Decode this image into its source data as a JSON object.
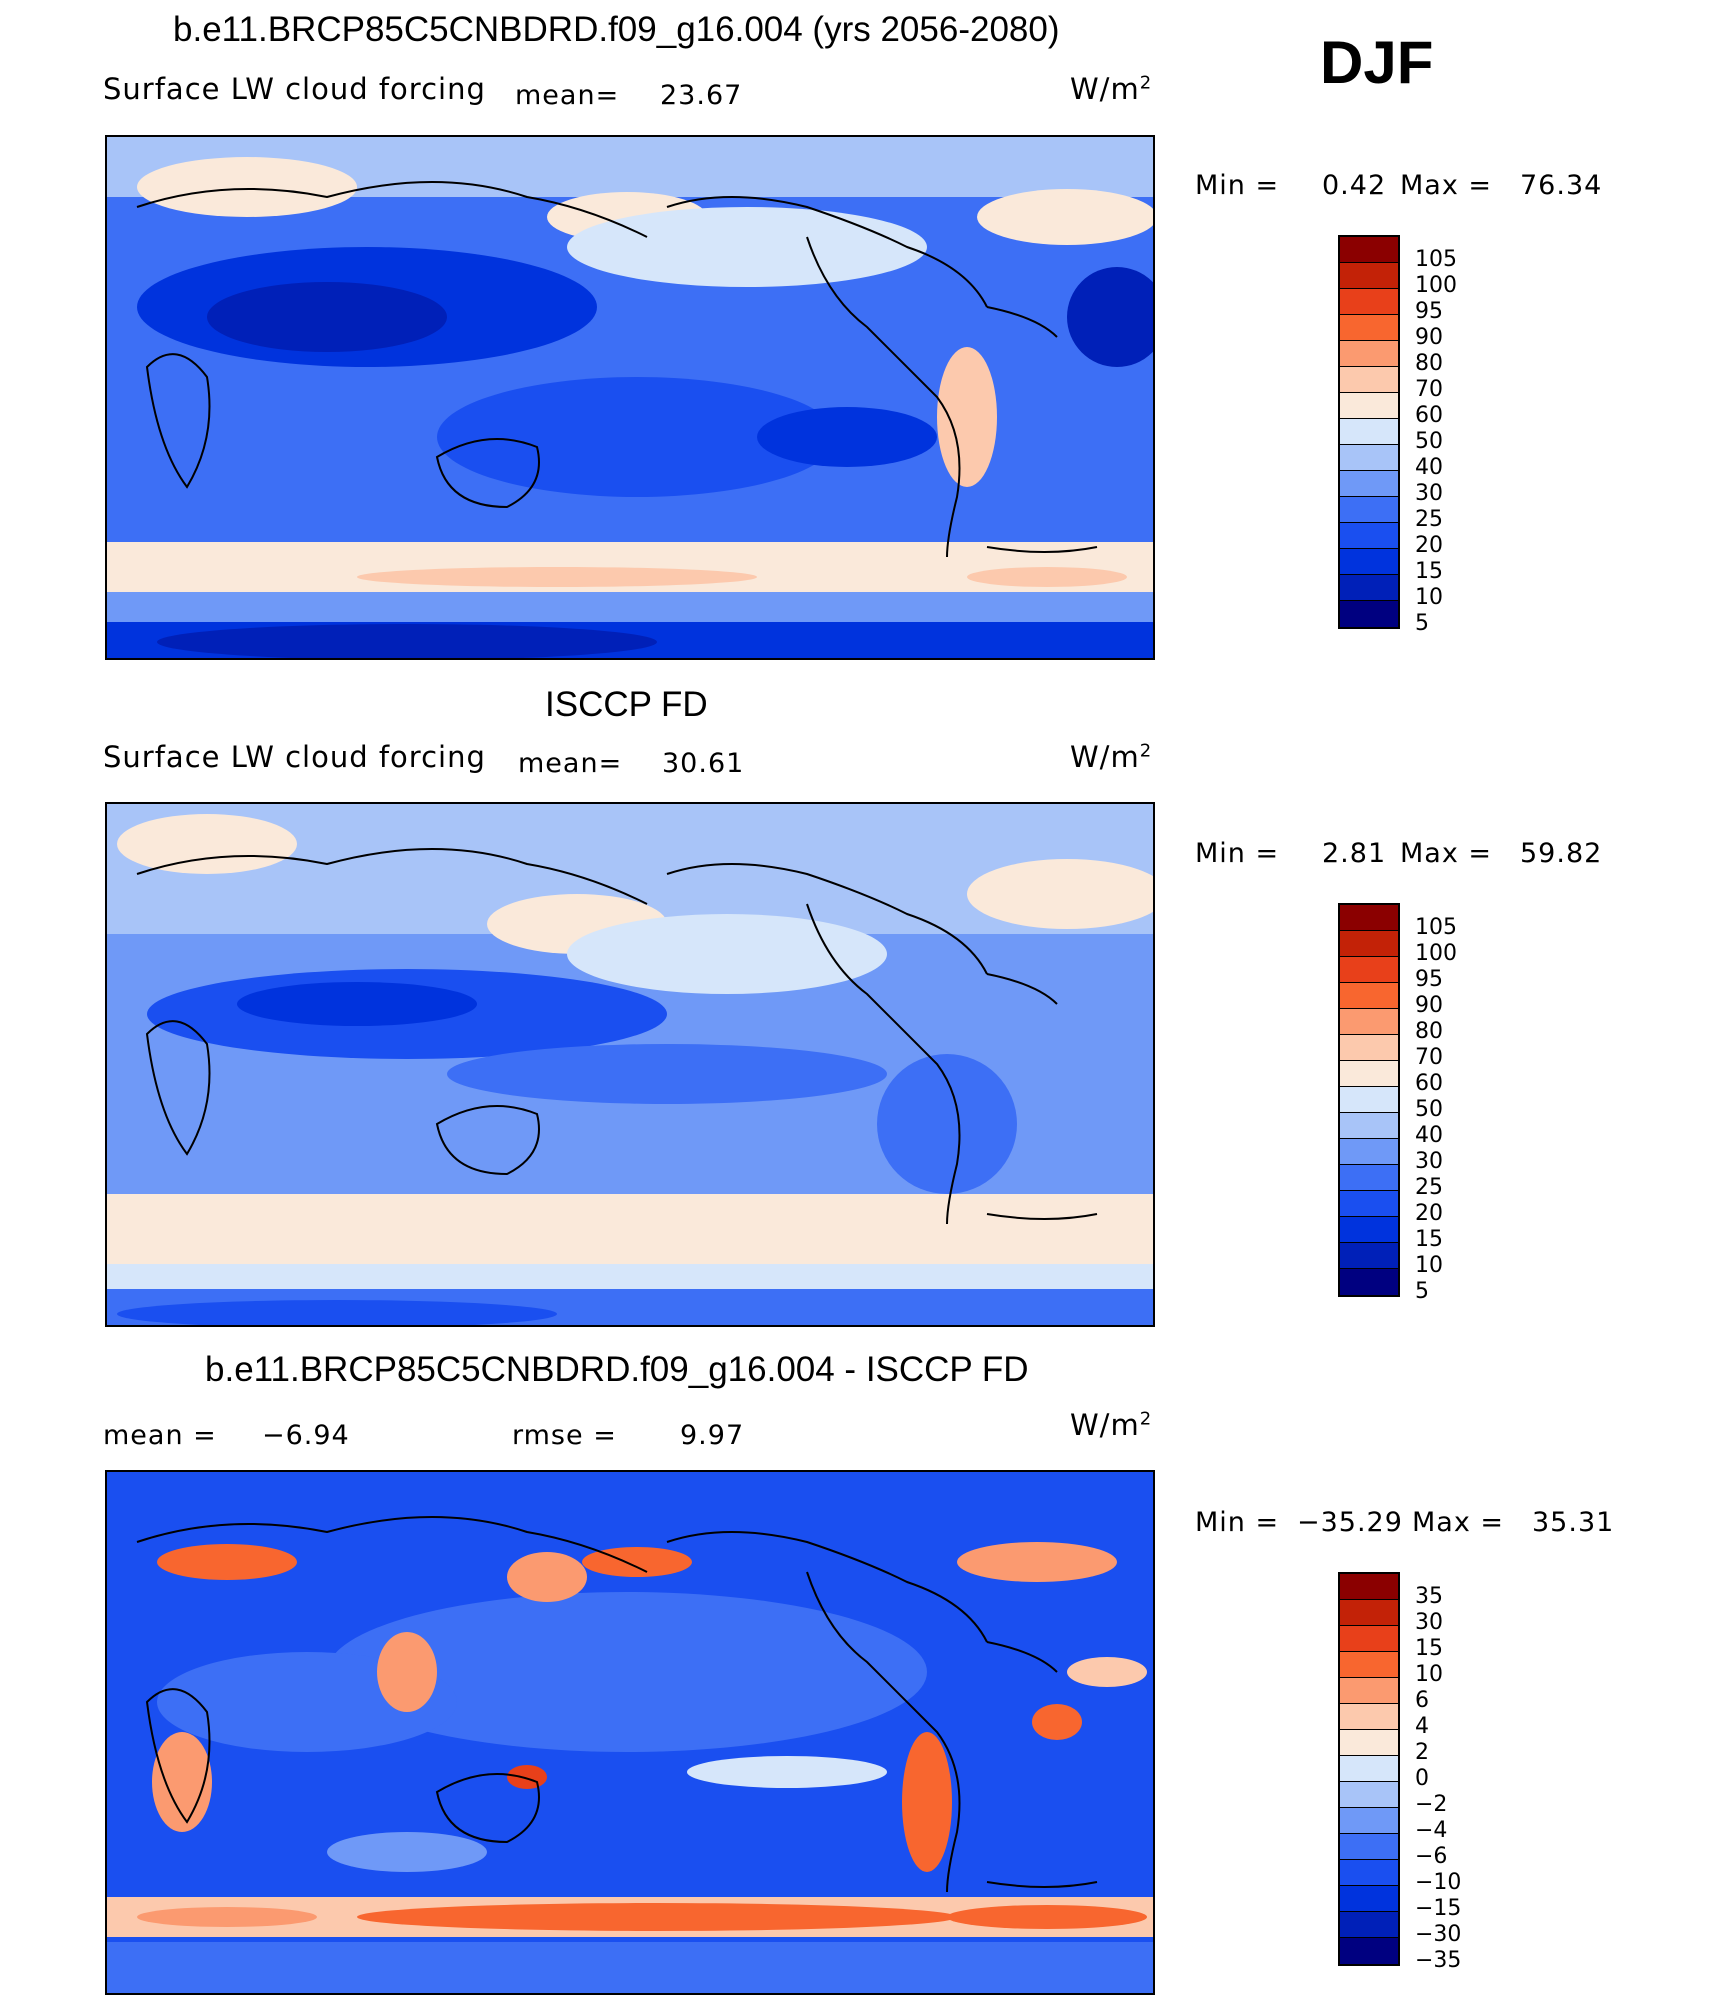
{
  "season": "DJF",
  "colors": {
    "level_scale": [
      "#000080",
      "#0020b8",
      "#0033dd",
      "#1a4ff0",
      "#3d6ff5",
      "#6f99f7",
      "#a8c4f8",
      "#d6e6fa",
      "#fae9da",
      "#fcc9ad",
      "#fb9a70",
      "#f8662f",
      "#e8401a",
      "#c32207",
      "#8b0000"
    ],
    "coastline": "#000000"
  },
  "panels": [
    {
      "title": "b.e11.BRCP85C5CNBDRD.f09_g16.004 (yrs 2056-2080)",
      "variable": "Surface LW cloud forcing",
      "mean_label": "mean=",
      "mean_value": "23.67",
      "units": "W/m",
      "units_sup": "2",
      "min_label": "Min =",
      "min_value": "0.42",
      "max_label": "Max =",
      "max_value": "76.34",
      "levels": [
        "105",
        "100",
        "95",
        "90",
        "80",
        "70",
        "60",
        "50",
        "40",
        "30",
        "25",
        "20",
        "15",
        "10",
        "5"
      ]
    },
    {
      "title": "ISCCP FD",
      "variable": "Surface LW cloud forcing",
      "mean_label": "mean=",
      "mean_value": "30.61",
      "units": "W/m",
      "units_sup": "2",
      "min_label": "Min =",
      "min_value": "2.81",
      "max_label": "Max =",
      "max_value": "59.82",
      "levels": [
        "105",
        "100",
        "95",
        "90",
        "80",
        "70",
        "60",
        "50",
        "40",
        "30",
        "25",
        "20",
        "15",
        "10",
        "5"
      ]
    },
    {
      "title": "b.e11.BRCP85C5CNBDRD.f09_g16.004 - ISCCP FD",
      "mean_label": "mean =",
      "mean_value": "−6.94",
      "rmse_label": "rmse =",
      "rmse_value": "9.97",
      "units": "W/m",
      "units_sup": "2",
      "min_label": "Min =",
      "min_value": "−35.29",
      "max_label": "Max =",
      "max_value": "35.31",
      "levels": [
        "35",
        "30",
        "15",
        "10",
        "6",
        "4",
        "2",
        "0",
        "−2",
        "−4",
        "−6",
        "−10",
        "−15",
        "−30",
        "−35"
      ]
    }
  ]
}
